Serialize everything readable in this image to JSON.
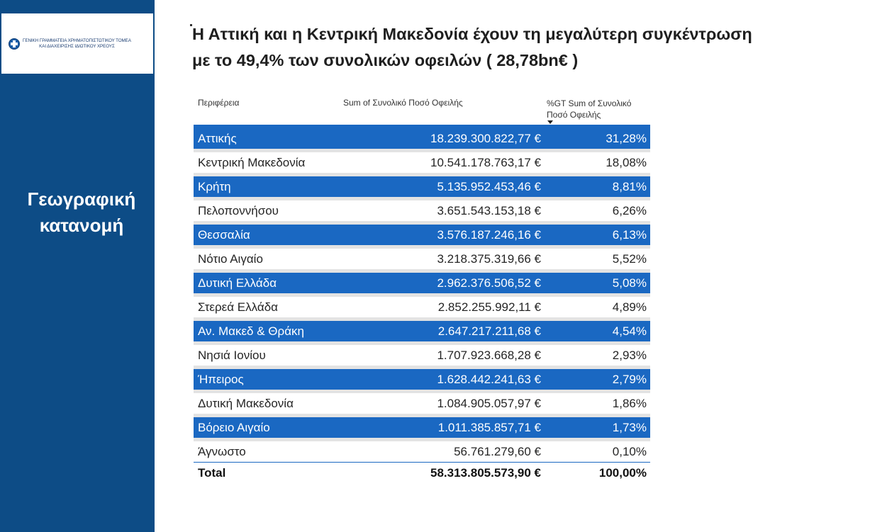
{
  "logo": {
    "line1": "ΓΕΝΙΚΗ ΓΡΑΜΜΑΤΕΙΑ ΧΡΗΜΑΤΟΠΙΣΤΩΤΙΚΟΥ ΤΟΜΕΑ",
    "line2": "ΚΑΙ ΔΙΑΧΕΙΡΙΣΗΣ ΙΔΙΩΤΙΚΟΥ ΧΡΕΟΥΣ"
  },
  "sidebar": {
    "title_line1": "Γεωγραφική",
    "title_line2": "κατανομή"
  },
  "heading": {
    "line1": "Η Αττική και η Κεντρική Μακεδονία  έχουν τη μεγαλύτερη συγκέντρωση",
    "line2": "με το 49,4% των συνολικών οφειλών ( 28,78bn€ )"
  },
  "table": {
    "headers": [
      "Περιφέρεια",
      "Sum of Συνολικό Ποσό Οφειλής",
      "%GT Sum of Συνολικό Ποσό Οφειλής"
    ],
    "rows": [
      {
        "region": "Αττικής",
        "amount": "18.239.300.822,77 €",
        "pct": "31,28%"
      },
      {
        "region": "Κεντρική Μακεδονία",
        "amount": "10.541.178.763,17 €",
        "pct": "18,08%"
      },
      {
        "region": "Κρήτη",
        "amount": "5.135.952.453,46 €",
        "pct": "8,81%"
      },
      {
        "region": "Πελοποννήσου",
        "amount": "3.651.543.153,18 €",
        "pct": "6,26%"
      },
      {
        "region": "Θεσσαλία",
        "amount": "3.576.187.246,16 €",
        "pct": "6,13%"
      },
      {
        "region": "Νότιο Αιγαίο",
        "amount": "3.218.375.319,66 €",
        "pct": "5,52%"
      },
      {
        "region": "Δυτική Ελλάδα",
        "amount": "2.962.376.506,52 €",
        "pct": "5,08%"
      },
      {
        "region": "Στερεά Ελλάδα",
        "amount": "2.852.255.992,11 €",
        "pct": "4,89%"
      },
      {
        "region": "Αν. Μακεδ & Θράκη",
        "amount": "2.647.217.211,68 €",
        "pct": "4,54%"
      },
      {
        "region": "Νησιά Ιονίου",
        "amount": "1.707.923.668,28 €",
        "pct": "2,93%"
      },
      {
        "region": "Ήπειρος",
        "amount": "1.628.442.241,63 €",
        "pct": "2,79%"
      },
      {
        "region": "Δυτική Μακεδονία",
        "amount": "1.084.905.057,97 €",
        "pct": "1,86%"
      },
      {
        "region": "Βόρειο Αιγαίο",
        "amount": "1.011.385.857,71 €",
        "pct": "1,73%"
      },
      {
        "region": "Άγνωστο",
        "amount": "56.761.279,60 €",
        "pct": "0,10%"
      }
    ],
    "total": {
      "label": "Total",
      "amount": "58.313.805.573,90 €",
      "pct": "100,00%"
    }
  },
  "colors": {
    "sidebar": "#0d4c86",
    "highlight_row": "#1a68c2",
    "separator": "#e3e3e3"
  }
}
